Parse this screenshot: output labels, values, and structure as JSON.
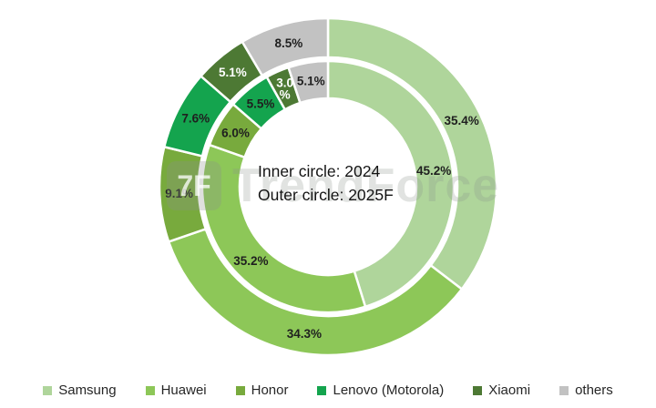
{
  "watermark": {
    "logo_glyph": "7F",
    "text": "TrendForce"
  },
  "chart_data": {
    "type": "donut",
    "title": "",
    "categories": [
      "Samsung",
      "Huawei",
      "Honor",
      "Lenovo (Motorola)",
      "Xiaomi",
      "others"
    ],
    "colors": [
      "#AFD59B",
      "#8DC758",
      "#78AA3D",
      "#14A44E",
      "#4D7934",
      "#C2C2C2"
    ],
    "label_text_colors": [
      "#1f1f1f",
      "#1f1f1f",
      "#1f1f1f",
      "#1f1f1f",
      "#ffffff",
      "#1f1f1f"
    ],
    "series": [
      {
        "name": "2025F",
        "ring": "outer",
        "values": [
          35.4,
          34.3,
          9.1,
          7.6,
          5.1,
          8.5
        ],
        "labels": [
          "35.4%",
          "34.3%",
          "9.1%",
          "7.6%",
          "5.1%",
          "8.5%"
        ]
      },
      {
        "name": "2024",
        "ring": "inner",
        "values": [
          45.2,
          35.2,
          6.0,
          5.5,
          3.0,
          5.1
        ],
        "labels": [
          "45.2%",
          "35.2%",
          "6.0%",
          "5.5%",
          "3.0\n%",
          "5.1%"
        ]
      }
    ],
    "center_label": {
      "line1": "Inner circle: 2024",
      "line2": "Outer circle: 2025F"
    },
    "legend_position": "bottom",
    "grid": false
  }
}
